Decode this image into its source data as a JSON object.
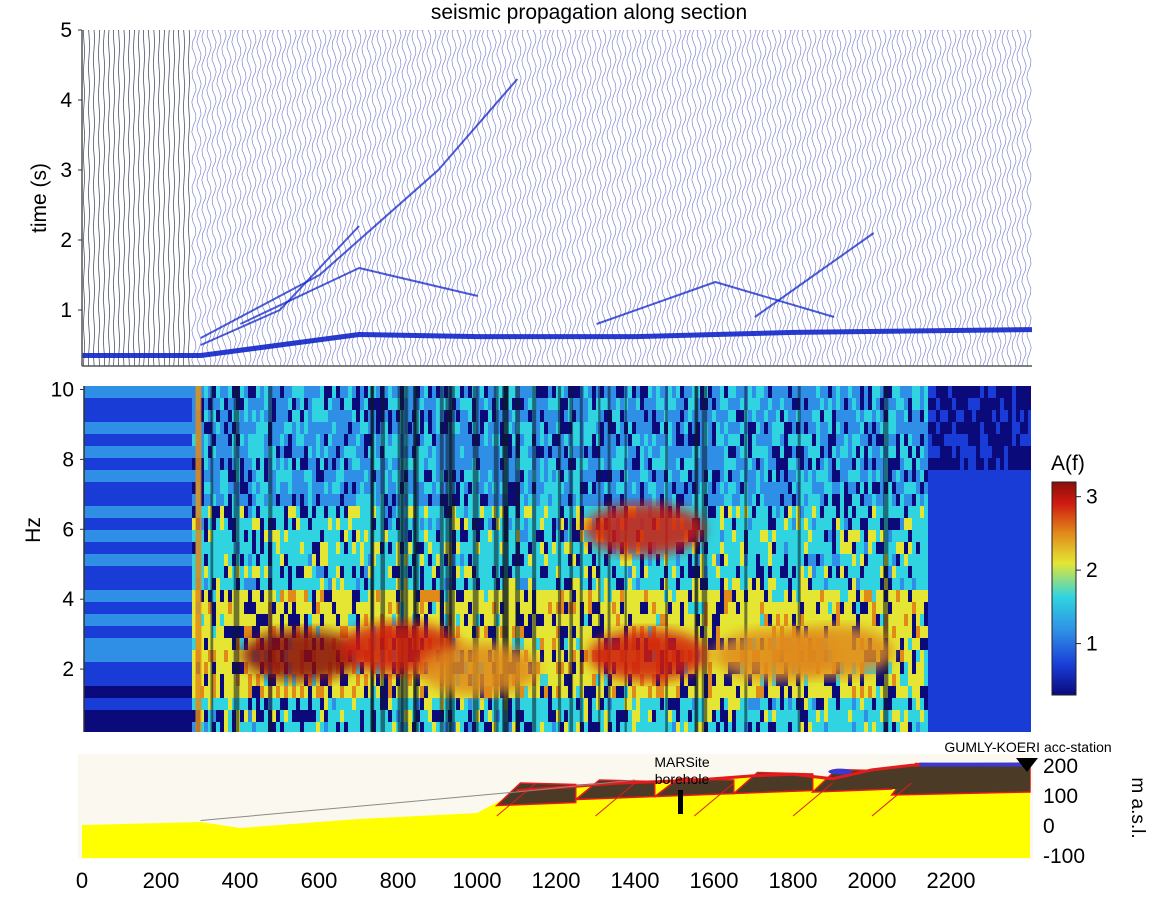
{
  "chart_data": [
    {
      "type": "line",
      "title": "seismic propagation along section",
      "ylabel": "time (s)",
      "yticks": [
        "5",
        "4",
        "3",
        "2",
        "1"
      ],
      "ylim": [
        0.2,
        5
      ],
      "xlim": [
        0,
        2400
      ],
      "series": [
        {
          "x": [
            0,
            300,
            700,
            1000,
            1400,
            1800,
            2400
          ],
          "values": [
            0.35,
            0.35,
            0.65,
            0.62,
            0.62,
            0.68,
            0.72
          ]
        },
        {
          "x": [
            300,
            600,
            900,
            1100
          ],
          "values": [
            0.6,
            1.5,
            3.0,
            4.3
          ]
        },
        {
          "x": [
            400,
            700,
            1000
          ],
          "values": [
            0.8,
            1.6,
            1.2
          ]
        },
        {
          "x": [
            300,
            500,
            700
          ],
          "values": [
            0.5,
            1.0,
            2.2
          ]
        },
        {
          "x": [
            1300,
            1600,
            1900
          ],
          "values": [
            0.8,
            1.4,
            0.9
          ]
        },
        {
          "x": [
            1700,
            2000
          ],
          "values": [
            0.9,
            2.1
          ]
        }
      ]
    },
    {
      "type": "heatmap",
      "ylabel": "Hz",
      "yticks": [
        "10",
        "8",
        "6",
        "4",
        "2"
      ],
      "ylim": [
        0.2,
        10.1
      ],
      "xlim": [
        0,
        2400
      ],
      "colorbar": {
        "label": "A(f)",
        "ticks": [
          "3",
          "2",
          "1"
        ],
        "range": [
          0.3,
          3.2
        ]
      },
      "colorscale": [
        "#0a0a7a",
        "#1a3cd6",
        "#2f8fe6",
        "#2fd4e0",
        "#e4e633",
        "#e08a1a",
        "#d01a10",
        "#8a0f0a"
      ],
      "highlights": [
        {
          "x": 550,
          "hz": 2.4,
          "amp": 3.0
        },
        {
          "x": 800,
          "hz": 2.6,
          "amp": 2.6
        },
        {
          "x": 1000,
          "hz": 2.0,
          "amp": 2.4
        },
        {
          "x": 1420,
          "hz": 6.0,
          "amp": 2.6
        },
        {
          "x": 1430,
          "hz": 2.4,
          "amp": 2.5
        },
        {
          "x": 1750,
          "hz": 2.4,
          "amp": 2.3
        },
        {
          "x": 1900,
          "hz": 2.5,
          "amp": 2.2
        }
      ]
    },
    {
      "type": "area",
      "xticks": [
        "0",
        "200",
        "400",
        "600",
        "800",
        "1000",
        "1200",
        "1400",
        "1600",
        "1800",
        "2000",
        "2200"
      ],
      "ylabel": "m a.s.l.",
      "yticks": [
        "200",
        "100",
        "0",
        "-100"
      ],
      "ylim": [
        -110,
        230
      ],
      "annotations": [
        {
          "text": "MARSite",
          "x": 1510
        },
        {
          "text": "borehole",
          "x": 1510
        },
        {
          "text": "GUMLY-KOERI acc-station",
          "x": 2400
        }
      ],
      "surface": {
        "x": [
          0,
          300,
          400,
          700,
          1000,
          1100,
          1200,
          1350,
          1450,
          1550,
          1700,
          1800,
          1900,
          2000,
          2100,
          2400
        ],
        "values": [
          0,
          10,
          -10,
          20,
          40,
          110,
          120,
          135,
          140,
          145,
          160,
          165,
          150,
          180,
          195,
          200
        ]
      },
      "layers": [
        {
          "name": "",
          "color": "#ffff00"
        },
        {
          "name": "",
          "color": "#4a3a26"
        },
        {
          "name": "",
          "color": "#e21c1c"
        },
        {
          "name": "",
          "color": "#3a3ad0"
        }
      ]
    }
  ]
}
